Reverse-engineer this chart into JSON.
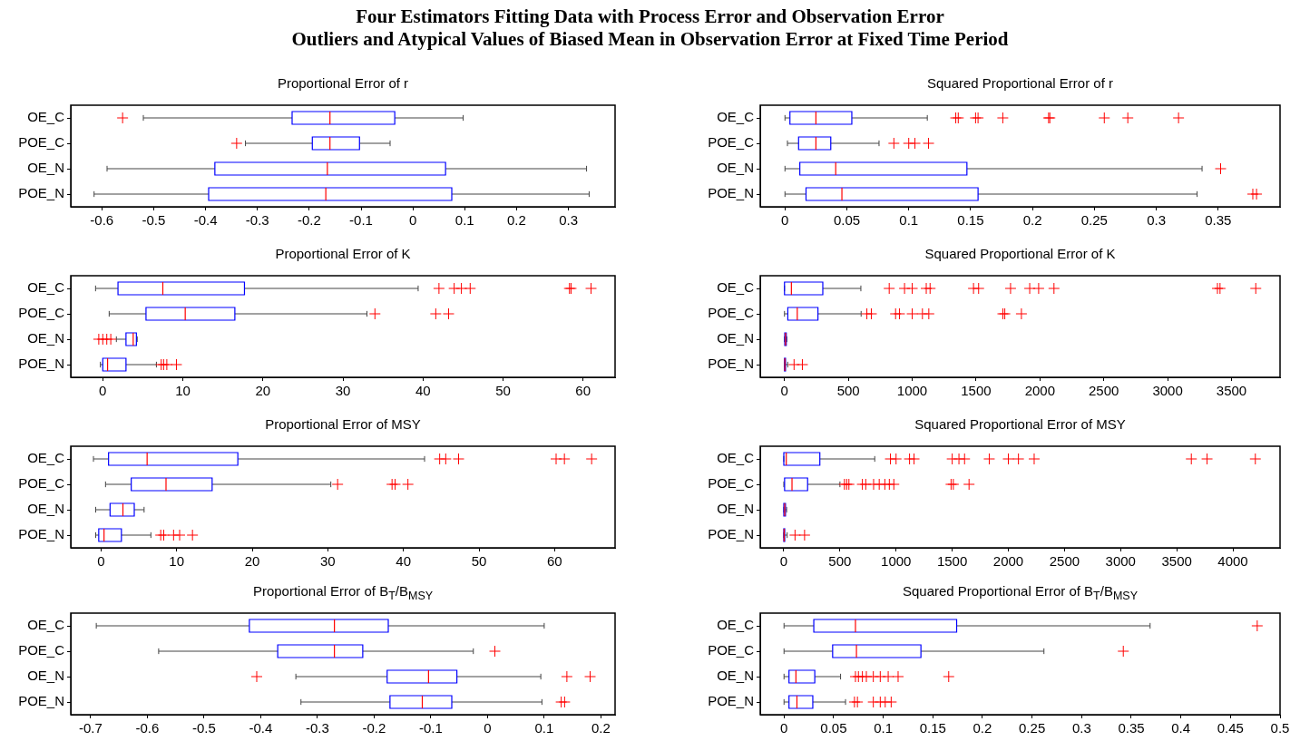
{
  "chart_data": [
    {
      "type": "box",
      "orientation": "horizontal",
      "title": "Proportional Error of r",
      "annotations": [
        "Four Estimators Fitting Data with Process Error and Observation Error",
        "Outliers and Atypical Values of Biased Mean in Observation Error at Fixed Time Period"
      ],
      "color": "#0000ff",
      "categories": [
        "OE_C",
        "POE_C",
        "OE_N",
        "POE_N"
      ],
      "xlim": [
        -0.66,
        0.39
      ],
      "xticks": [
        -0.6,
        -0.5,
        -0.4,
        -0.3,
        -0.2,
        -0.1,
        0,
        0.1,
        0.2,
        0.3
      ],
      "boxes": [
        {
          "low": -0.52,
          "q1": -0.233,
          "median": -0.16,
          "q3": -0.035,
          "high": 0.097,
          "outliers": [
            -0.56
          ]
        },
        {
          "low": -0.323,
          "q1": -0.194,
          "median": -0.16,
          "q3": -0.103,
          "high": -0.044,
          "outliers": [
            -0.34
          ]
        },
        {
          "low": -0.59,
          "q1": -0.382,
          "median": -0.165,
          "q3": 0.063,
          "high": 0.335
        },
        {
          "low": -0.615,
          "q1": -0.394,
          "median": -0.168,
          "q3": 0.075,
          "high": 0.34
        }
      ]
    },
    {
      "type": "box",
      "orientation": "horizontal",
      "title": "Squared Proportional Error of r",
      "color": "#0000ff",
      "categories": [
        "OE_C",
        "POE_C",
        "OE_N",
        "POE_N"
      ],
      "xlim": [
        -0.02,
        0.4
      ],
      "xticks": [
        0,
        0.05,
        0.1,
        0.15,
        0.2,
        0.25,
        0.3,
        0.35
      ],
      "boxes": [
        {
          "low": 0,
          "q1": 0.004,
          "median": 0.025,
          "q3": 0.054,
          "high": 0.115,
          "outliers": [
            0.138,
            0.14,
            0.154,
            0.156,
            0.176,
            0.213,
            0.214,
            0.258,
            0.277,
            0.318
          ]
        },
        {
          "low": 0.002,
          "q1": 0.011,
          "median": 0.025,
          "q3": 0.037,
          "high": 0.076,
          "outliers": [
            0.088,
            0.1,
            0.105,
            0.116
          ]
        },
        {
          "low": 0,
          "q1": 0.012,
          "median": 0.041,
          "q3": 0.147,
          "high": 0.337,
          "outliers": [
            0.352
          ]
        },
        {
          "low": 0,
          "q1": 0.017,
          "median": 0.046,
          "q3": 0.156,
          "high": 0.333,
          "outliers": [
            0.378,
            0.381
          ]
        }
      ]
    },
    {
      "type": "box",
      "orientation": "horizontal",
      "title": "Proportional Error of K",
      "color": "#0000ff",
      "categories": [
        "OE_C",
        "POE_C",
        "OE_N",
        "POE_N"
      ],
      "xlim": [
        -4,
        64
      ],
      "xticks": [
        0,
        10,
        20,
        30,
        40,
        50,
        60
      ],
      "boxes": [
        {
          "low": -0.9,
          "q1": 1.9,
          "median": 7.5,
          "q3": 17.7,
          "high": 39.4,
          "outliers": [
            42,
            43.9,
            44.8,
            45.9,
            58.3,
            58.5,
            61
          ]
        },
        {
          "low": 0.8,
          "q1": 5.4,
          "median": 10.3,
          "q3": 16.5,
          "high": 33,
          "outliers": [
            34,
            41.6,
            43.2
          ]
        },
        {
          "low": 1.7,
          "q1": 2.9,
          "median": 3.8,
          "q3": 4.2,
          "high": 4.3,
          "outliers": [
            -0.5,
            0,
            0.5,
            1
          ]
        },
        {
          "low": -0.3,
          "q1": 0,
          "median": 0.6,
          "q3": 2.9,
          "high": 6.7,
          "outliers": [
            7.3,
            7.6,
            8,
            9.2
          ]
        }
      ]
    },
    {
      "type": "box",
      "orientation": "horizontal",
      "title": "Squared Proportional Error of K",
      "color": "#0000ff",
      "categories": [
        "OE_C",
        "POE_C",
        "OE_N",
        "POE_N"
      ],
      "xlim": [
        -190,
        3880
      ],
      "xticks": [
        0,
        500,
        1000,
        1500,
        2000,
        2500,
        3000,
        3500
      ],
      "boxes": [
        {
          "low": 0,
          "q1": 0,
          "median": 54,
          "q3": 300,
          "high": 598,
          "outliers": [
            820,
            940,
            1000,
            1110,
            1140,
            1480,
            1520,
            1770,
            1920,
            1990,
            2110,
            3390,
            3410,
            3690
          ]
        },
        {
          "low": 0,
          "q1": 26,
          "median": 100,
          "q3": 262,
          "high": 600,
          "outliers": [
            645,
            680,
            870,
            900,
            1000,
            1080,
            1130,
            1710,
            1725,
            1855
          ]
        },
        {
          "low": 0,
          "q1": 2,
          "median": 8,
          "q3": 14,
          "high": 18
        },
        {
          "low": 0,
          "q1": 0,
          "median": 3,
          "q3": 8,
          "high": 25,
          "outliers": [
            75,
            140
          ]
        }
      ]
    },
    {
      "type": "box",
      "orientation": "horizontal",
      "title": "Proportional Error of MSY",
      "color": "#0000ff",
      "categories": [
        "OE_C",
        "POE_C",
        "OE_N",
        "POE_N"
      ],
      "xlim": [
        -4,
        68
      ],
      "xticks": [
        0,
        10,
        20,
        30,
        40,
        50,
        60
      ],
      "boxes": [
        {
          "low": -1,
          "q1": 1,
          "median": 6.1,
          "q3": 18.1,
          "high": 42.8,
          "outliers": [
            44.8,
            45.6,
            47.3,
            60.2,
            61.3,
            64.9
          ]
        },
        {
          "low": 0.6,
          "q1": 4,
          "median": 8.6,
          "q3": 14.7,
          "high": 30.4,
          "outliers": [
            31.3,
            38.5,
            38.9,
            40.6
          ]
        },
        {
          "low": -0.7,
          "q1": 1.2,
          "median": 2.9,
          "q3": 4.4,
          "high": 5.7
        },
        {
          "low": -0.7,
          "q1": -0.3,
          "median": 0.4,
          "q3": 2.7,
          "high": 6.6,
          "outliers": [
            7.9,
            8.3,
            9.6,
            10.4,
            12.1
          ]
        }
      ]
    },
    {
      "type": "box",
      "orientation": "horizontal",
      "title": "Squared Proportional Error of MSY",
      "color": "#0000ff",
      "categories": [
        "OE_C",
        "POE_C",
        "OE_N",
        "POE_N"
      ],
      "xlim": [
        -210,
        4420
      ],
      "xticks": [
        0,
        500,
        1000,
        1500,
        2000,
        2500,
        3000,
        3500,
        4000
      ],
      "boxes": [
        {
          "low": 0,
          "q1": 0,
          "median": 22,
          "q3": 321,
          "high": 810,
          "outliers": [
            950,
            1000,
            1120,
            1160,
            1500,
            1560,
            1610,
            1830,
            2000,
            2090,
            2230,
            3630,
            3770,
            4200
          ]
        },
        {
          "low": 0,
          "q1": 7,
          "median": 73,
          "q3": 212,
          "high": 500,
          "outliers": [
            540,
            560,
            580,
            700,
            730,
            800,
            850,
            900,
            940,
            980,
            1490,
            1510,
            1650
          ]
        },
        {
          "low": 0,
          "q1": 0,
          "median": 8,
          "q3": 15,
          "high": 25
        },
        {
          "low": 0,
          "q1": 0,
          "median": 3,
          "q3": 8,
          "high": 30,
          "outliers": [
            100,
            185
          ]
        }
      ]
    },
    {
      "type": "box",
      "orientation": "horizontal",
      "title": "Proportional Error of B$_{T}$/B$_{MSY}$",
      "color": "#0000ff",
      "categories": [
        "OE_C",
        "POE_C",
        "OE_N",
        "POE_N"
      ],
      "xlim": [
        -0.735,
        0.225
      ],
      "xticks": [
        -0.7,
        -0.6,
        -0.5,
        -0.4,
        -0.3,
        -0.2,
        -0.1,
        0,
        0.1,
        0.2
      ],
      "boxes": [
        {
          "low": -0.69,
          "q1": -0.42,
          "median": -0.27,
          "q3": -0.175,
          "high": 0.1
        },
        {
          "low": -0.58,
          "q1": -0.37,
          "median": -0.27,
          "q3": -0.22,
          "high": -0.025,
          "outliers": [
            0.013
          ]
        },
        {
          "low": -0.338,
          "q1": -0.177,
          "median": -0.104,
          "q3": -0.054,
          "high": 0.094,
          "outliers": [
            -0.407,
            0.14,
            0.181
          ]
        },
        {
          "low": -0.329,
          "q1": -0.172,
          "median": -0.115,
          "q3": -0.063,
          "high": 0.096,
          "outliers": [
            0.13,
            0.136
          ]
        }
      ]
    },
    {
      "type": "box",
      "orientation": "horizontal",
      "title": "Squared Proportional Error of B$_{T}$/B$_{MSY}$",
      "color": "#0000ff",
      "categories": [
        "OE_C",
        "POE_C",
        "OE_N",
        "POE_N"
      ],
      "xlim": [
        -0.024,
        0.5
      ],
      "xticks": [
        0,
        0.05,
        0.1,
        0.15,
        0.2,
        0.25,
        0.3,
        0.35,
        0.4,
        0.45,
        0.5
      ],
      "boxes": [
        {
          "low": 0,
          "q1": 0.03,
          "median": 0.072,
          "q3": 0.174,
          "high": 0.369,
          "outliers": [
            0.477
          ]
        },
        {
          "low": 0,
          "q1": 0.049,
          "median": 0.073,
          "q3": 0.138,
          "high": 0.262,
          "outliers": [
            0.342
          ]
        },
        {
          "low": 0,
          "q1": 0.005,
          "median": 0.012,
          "q3": 0.031,
          "high": 0.057,
          "outliers": [
            0.072,
            0.075,
            0.079,
            0.083,
            0.09,
            0.097,
            0.105,
            0.115,
            0.166
          ]
        },
        {
          "low": 0,
          "q1": 0.005,
          "median": 0.013,
          "q3": 0.029,
          "high": 0.062,
          "outliers": [
            0.071,
            0.074,
            0.09,
            0.097,
            0.102,
            0.108
          ]
        }
      ]
    }
  ]
}
